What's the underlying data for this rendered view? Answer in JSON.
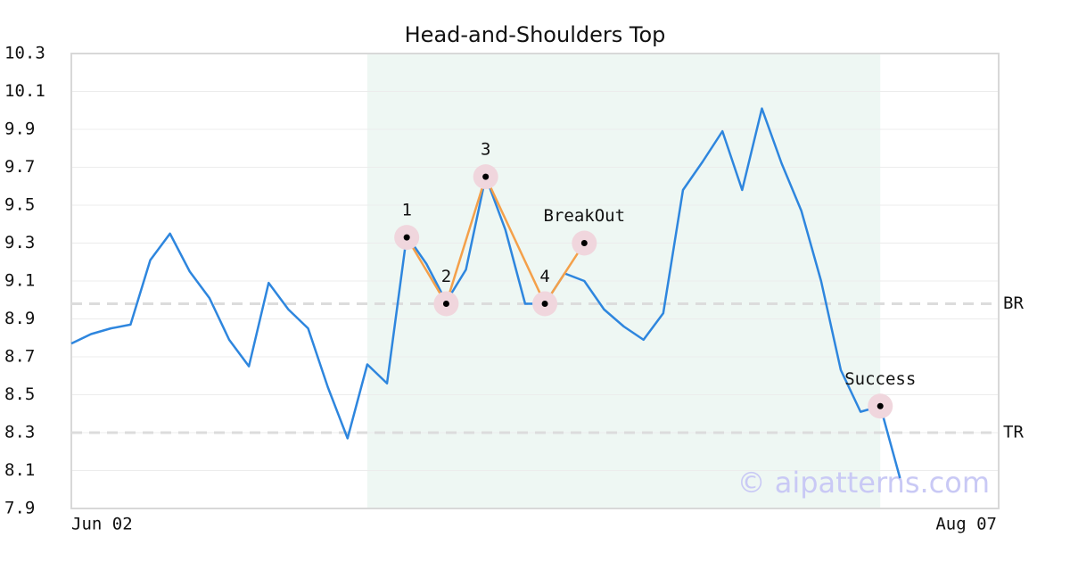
{
  "chart_data": {
    "type": "line",
    "title": "Head-and-Shoulders Top",
    "x": [
      0,
      1,
      2,
      3,
      4,
      5,
      6,
      7,
      8,
      9,
      10,
      11,
      12,
      13,
      14,
      15,
      16,
      17,
      18,
      19,
      20,
      21,
      22,
      23,
      24,
      25,
      26,
      27,
      28,
      29,
      30,
      31,
      32,
      33,
      34,
      35,
      36,
      37,
      38,
      39,
      40,
      41,
      42
    ],
    "values": [
      8.77,
      8.82,
      8.85,
      8.87,
      9.21,
      9.35,
      9.15,
      9.01,
      8.79,
      8.65,
      9.09,
      8.95,
      8.85,
      8.54,
      8.27,
      8.66,
      8.56,
      9.34,
      9.19,
      8.99,
      9.16,
      9.65,
      9.37,
      8.98,
      8.98,
      9.14,
      9.1,
      8.95,
      8.86,
      8.79,
      8.93,
      9.58,
      9.73,
      9.89,
      9.58,
      10.01,
      9.72,
      9.47,
      9.1,
      8.63,
      8.41,
      8.44,
      8.06
    ],
    "color": "#2e86de",
    "pattern": {
      "x": [
        17,
        19,
        21,
        24,
        26
      ],
      "values": [
        9.33,
        8.98,
        9.65,
        8.98,
        9.3
      ],
      "labels": [
        "1",
        "2",
        "3",
        "4",
        "BreakOut"
      ],
      "color": "#f4a04a"
    },
    "success": {
      "x": 41,
      "value": 8.44,
      "label": "Success"
    },
    "reference_lines": [
      {
        "value": 8.98,
        "label": "BR"
      },
      {
        "value": 8.3,
        "label": "TR"
      }
    ],
    "highlight_x": [
      15,
      41
    ],
    "watermark": "© aipatterns.com",
    "xlim": [
      0,
      47
    ],
    "xticks": [
      {
        "value": 0,
        "label": "Jun 02"
      },
      {
        "value": 47,
        "label": "Aug 07"
      }
    ],
    "ylim": [
      7.9,
      10.3
    ],
    "yticks": [
      7.9,
      8.1,
      8.3,
      8.5,
      8.7,
      8.9,
      9.1,
      9.3,
      9.5,
      9.7,
      9.9,
      10.1,
      10.3
    ],
    "grid": true
  }
}
